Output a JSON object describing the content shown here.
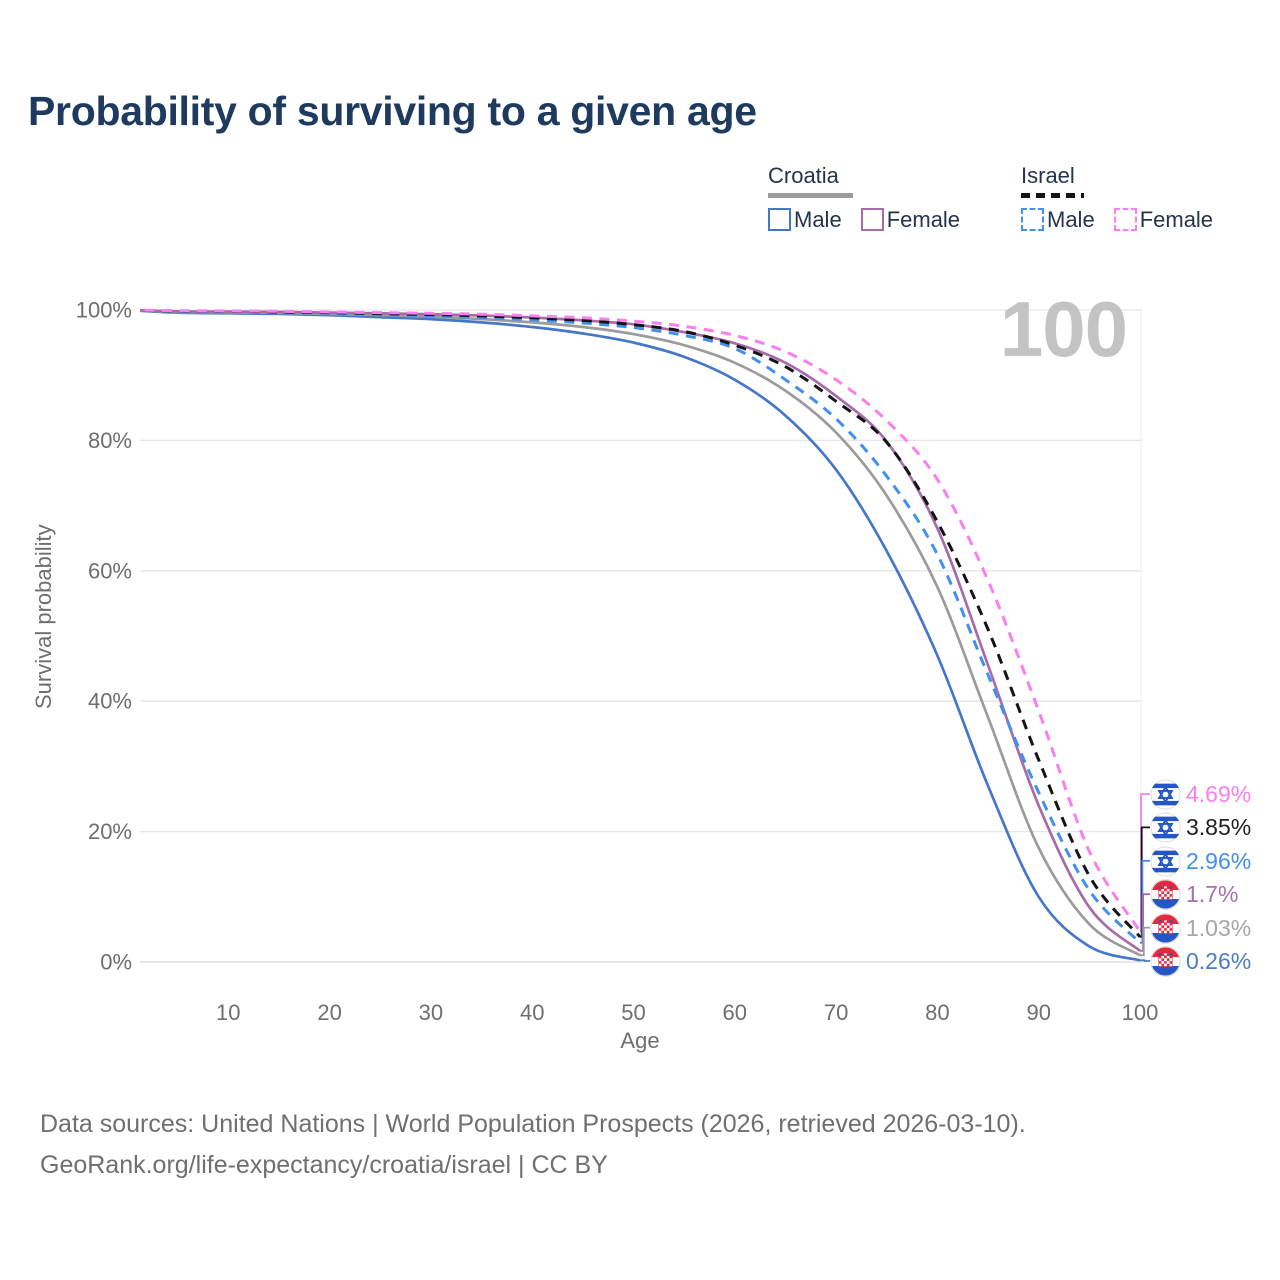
{
  "title": "Probability of surviving to a given age",
  "watermark": "100",
  "legend": {
    "croatia": {
      "label": "Croatia",
      "male": "Male",
      "female": "Female"
    },
    "israel": {
      "label": "Israel",
      "male": "Male",
      "female": "Female"
    }
  },
  "axes": {
    "y_label": "Survival probability",
    "x_label": "Age",
    "y_ticks": [
      "100%",
      "80%",
      "60%",
      "40%",
      "20%",
      "0%"
    ],
    "x_ticks": [
      "10",
      "20",
      "30",
      "40",
      "50",
      "60",
      "70",
      "80",
      "90",
      "100"
    ]
  },
  "footer": {
    "line1": "Data sources: United Nations | World Population Prospects (2026, retrieved 2026-03-10).",
    "line2": "GeoRank.org/life-expectancy/croatia/israel | CC BY"
  },
  "colors": {
    "croatia_male": "#4577C9",
    "croatia_both": "#9B9B9B",
    "croatia_female": "#A66BA8",
    "israel_male": "#4190F0",
    "israel_both": "#141414",
    "israel_female": "#F97EF0",
    "grid": "#E6E6E6",
    "axis_text": "#6E6E6E",
    "title_text": "#1F3A5F",
    "watermark_text": "#C3C3C3",
    "footer_text": "#6F6F6F",
    "legend_text": "#26334D"
  },
  "chart_data": {
    "type": "line",
    "title": "Probability of surviving to a given age",
    "xlabel": "Age",
    "ylabel": "Survival probability",
    "xlim": [
      0,
      100
    ],
    "ylim": [
      0,
      100
    ],
    "grid": "horizontal",
    "legend_position": "top-right",
    "x": [
      0,
      5,
      10,
      15,
      20,
      25,
      30,
      35,
      40,
      45,
      50,
      55,
      60,
      65,
      70,
      75,
      80,
      85,
      90,
      95,
      100
    ],
    "series": [
      {
        "name": "Croatia Male",
        "country": "croatia",
        "sex": "male",
        "style": "solid",
        "color": "#4577C9",
        "label_color": "#4A7CC8",
        "end_label": "0.26%",
        "values": [
          100,
          99.6,
          99.5,
          99.4,
          99.2,
          98.9,
          98.6,
          98.1,
          97.4,
          96.4,
          95.0,
          92.8,
          89.3,
          83.8,
          75.5,
          63.0,
          47.0,
          27.0,
          10.0,
          2.4,
          0.26
        ]
      },
      {
        "name": "Croatia Both sexes",
        "country": "croatia",
        "sex": "both",
        "style": "solid",
        "color": "#9B9B9B",
        "label_color": "#A6A6A6",
        "end_label": "1.03%",
        "values": [
          100,
          99.7,
          99.65,
          99.55,
          99.4,
          99.2,
          99.0,
          98.6,
          98.1,
          97.4,
          96.3,
          94.6,
          91.9,
          87.6,
          81.2,
          71.5,
          57.5,
          37.5,
          17.5,
          5.8,
          1.03
        ]
      },
      {
        "name": "Croatia Female",
        "country": "croatia",
        "sex": "female",
        "style": "solid",
        "color": "#A66BA8",
        "label_color": "#A86FB0",
        "end_label": "1.7%",
        "values": [
          100,
          99.8,
          99.75,
          99.7,
          99.6,
          99.5,
          99.35,
          99.15,
          98.85,
          98.4,
          97.8,
          96.6,
          94.9,
          91.9,
          86.8,
          79.8,
          66.5,
          45.5,
          24.0,
          8.4,
          1.7
        ]
      },
      {
        "name": "Israel Male",
        "country": "israel",
        "sex": "male",
        "style": "dashed",
        "color": "#4190F0",
        "label_color": "#4190F0",
        "end_label": "2.96%",
        "values": [
          100,
          99.8,
          99.75,
          99.65,
          99.5,
          99.3,
          99.1,
          98.85,
          98.5,
          98.0,
          97.3,
          96.1,
          94.1,
          89.3,
          83.3,
          74.5,
          62.5,
          44.0,
          26.0,
          11.0,
          2.96
        ]
      },
      {
        "name": "Israel Both sexes",
        "country": "israel",
        "sex": "both",
        "style": "dashed",
        "color": "#141414",
        "label_color": "#1F1F1F",
        "end_label": "3.85%",
        "values": [
          100,
          99.85,
          99.8,
          99.7,
          99.6,
          99.45,
          99.3,
          99.1,
          98.8,
          98.4,
          97.75,
          96.7,
          94.6,
          91.3,
          86.0,
          79.7,
          67.5,
          51.0,
          31.0,
          13.2,
          3.85
        ]
      },
      {
        "name": "Israel Female",
        "country": "israel",
        "sex": "female",
        "style": "dashed",
        "color": "#F97EF0",
        "label_color": "#F97EF0",
        "end_label": "4.69%",
        "values": [
          100,
          99.9,
          99.85,
          99.8,
          99.7,
          99.6,
          99.5,
          99.35,
          99.1,
          98.8,
          98.3,
          97.5,
          96.1,
          93.6,
          89.3,
          83.0,
          74.0,
          58.5,
          38.5,
          17.0,
          4.69
        ]
      }
    ]
  }
}
